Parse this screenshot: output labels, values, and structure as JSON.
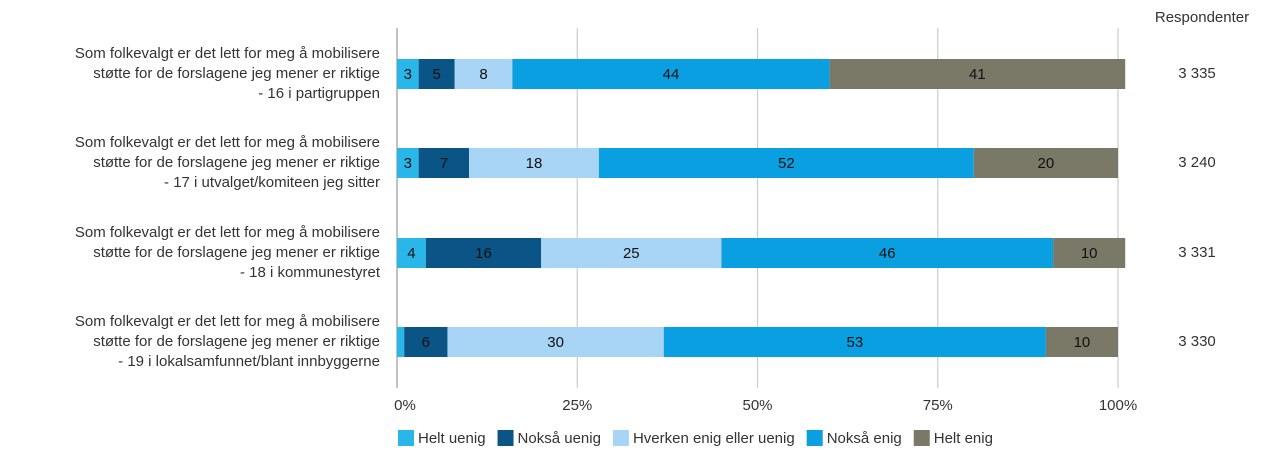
{
  "chart_data": {
    "type": "stacked_barh",
    "categories": [
      [
        "Som folkevalgt er det lett for meg å mobilisere",
        "støtte for de forslagene jeg mener er riktige",
        "- 16 i partigruppen"
      ],
      [
        "Som folkevalgt er det lett for meg å mobilisere",
        "støtte for de forslagene jeg mener er riktige",
        "- 17  i utvalget/komiteen jeg sitter"
      ],
      [
        "Som folkevalgt er det lett for meg å mobilisere",
        "støtte for de forslagene jeg mener er riktige",
        "- 18 i kommunestyret"
      ],
      [
        "Som folkevalgt er det lett for meg å mobilisere",
        "støtte for de forslagene jeg mener er riktige",
        "- 19 i lokalsamfunnet/blant innbyggerne"
      ]
    ],
    "series": [
      {
        "name": "Helt uenig",
        "color": "#29b6e8",
        "values": [
          3,
          3,
          4,
          1
        ]
      },
      {
        "name": "Nokså uenig",
        "color": "#0b5486",
        "values": [
          5,
          7,
          16,
          6
        ]
      },
      {
        "name": "Hverken enig eller uenig",
        "color": "#a8d4f5",
        "values": [
          8,
          18,
          25,
          30
        ]
      },
      {
        "name": "Nokså enig",
        "color": "#0a9fe0",
        "values": [
          44,
          52,
          46,
          53
        ]
      },
      {
        "name": "Helt enig",
        "color": "#7a7867",
        "values": [
          41,
          20,
          10,
          10
        ]
      }
    ],
    "xlim": [
      0,
      100
    ],
    "xticks": [
      {
        "value": 0,
        "label": "0%"
      },
      {
        "value": 25,
        "label": "25%"
      },
      {
        "value": 50,
        "label": "50%"
      },
      {
        "value": 75,
        "label": "75%"
      },
      {
        "value": 100,
        "label": "100%"
      }
    ],
    "grid": true,
    "legend": "bottom",
    "respondents_title": "Respondenter",
    "respondents": [
      {
        "value": 3335,
        "label": "3 335"
      },
      {
        "value": 3240,
        "label": "3 240"
      },
      {
        "value": 3331,
        "label": "3 331"
      },
      {
        "value": 3330,
        "label": "3 330"
      }
    ]
  }
}
